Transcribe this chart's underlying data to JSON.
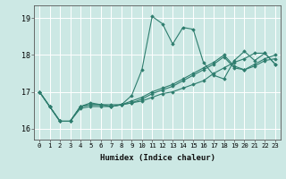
{
  "xlabel": "Humidex (Indice chaleur)",
  "bg_color": "#cce8e4",
  "line_color": "#2e7d6e",
  "grid_color": "#ffffff",
  "xlim": [
    -0.5,
    23.5
  ],
  "ylim": [
    15.7,
    19.35
  ],
  "yticks": [
    16,
    17,
    18,
    19
  ],
  "xticks": [
    0,
    1,
    2,
    3,
    4,
    5,
    6,
    7,
    8,
    9,
    10,
    11,
    12,
    13,
    14,
    15,
    16,
    17,
    18,
    19,
    20,
    21,
    22,
    23
  ],
  "series": [
    [
      17.0,
      16.6,
      16.2,
      16.2,
      16.6,
      16.7,
      16.65,
      16.6,
      16.65,
      16.9,
      17.6,
      19.05,
      18.85,
      18.3,
      18.75,
      18.7,
      17.8,
      17.45,
      17.35,
      17.85,
      18.1,
      17.85,
      18.05,
      17.75
    ],
    [
      17.0,
      16.6,
      16.2,
      16.2,
      16.55,
      16.6,
      16.6,
      16.6,
      16.65,
      16.7,
      16.75,
      16.85,
      16.95,
      17.0,
      17.1,
      17.2,
      17.3,
      17.5,
      17.65,
      17.8,
      17.9,
      18.05,
      18.05,
      17.75
    ],
    [
      17.0,
      16.6,
      16.2,
      16.2,
      16.6,
      16.65,
      16.65,
      16.6,
      16.65,
      16.7,
      16.8,
      16.95,
      17.05,
      17.15,
      17.3,
      17.45,
      17.6,
      17.75,
      17.95,
      17.65,
      17.6,
      17.7,
      17.85,
      17.9
    ],
    [
      17.0,
      16.6,
      16.2,
      16.2,
      16.6,
      16.65,
      16.65,
      16.65,
      16.65,
      16.75,
      16.85,
      17.0,
      17.1,
      17.2,
      17.35,
      17.5,
      17.65,
      17.8,
      18.0,
      17.7,
      17.6,
      17.75,
      17.9,
      18.0
    ]
  ]
}
